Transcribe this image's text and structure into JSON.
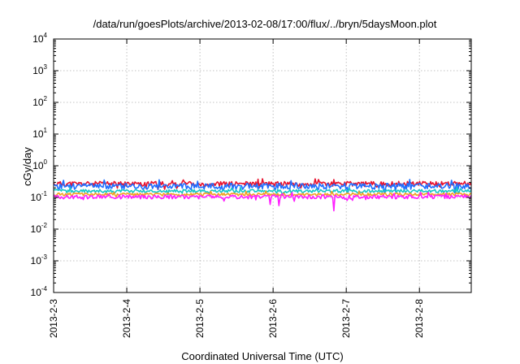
{
  "chart_data": {
    "type": "line",
    "title": "/data/run/goesPlots/archive/2013-02-08/17:00/flux/../bryn/5daysMoon.plot",
    "xlabel": "Coordinated Universal Time (UTC)",
    "ylabel": "cGy/day",
    "yscale": "log",
    "ylim": [
      0.0001,
      10000
    ],
    "y_ticks": [
      {
        "base": "10",
        "exp": "-4"
      },
      {
        "base": "10",
        "exp": "-3"
      },
      {
        "base": "10",
        "exp": "-2"
      },
      {
        "base": "10",
        "exp": "-1"
      },
      {
        "base": "10",
        "exp": "0"
      },
      {
        "base": "10",
        "exp": "1"
      },
      {
        "base": "10",
        "exp": "2"
      },
      {
        "base": "10",
        "exp": "3"
      },
      {
        "base": "10",
        "exp": "4"
      }
    ],
    "xlim": [
      "2013-02-03",
      "2013-02-08T17:00"
    ],
    "x_ticks": [
      "2013-2-3",
      "2013-2-4",
      "2013-2-5",
      "2013-2-6",
      "2013-2-7",
      "2013-2-8"
    ],
    "grid": true,
    "legend": "none",
    "series": [
      {
        "color": "#e8112d",
        "level": 0.27,
        "variation": 0.18,
        "spikes": [],
        "seed": 11
      },
      {
        "color": "#1f6fff",
        "level": 0.23,
        "variation": 0.22,
        "spikes": [],
        "seed": 23
      },
      {
        "color": "#17c7c7",
        "level": 0.16,
        "variation": 0.12,
        "spikes": [],
        "seed": 37
      },
      {
        "color": "#f0a020",
        "level": 0.125,
        "variation": 0.1,
        "spikes": [],
        "seed": 51
      },
      {
        "color": "#ff1fff",
        "level": 0.105,
        "variation": 0.14,
        "spikes": [
          {
            "x": "2013-02-05T23:00",
            "y": 0.06
          },
          {
            "x": "2013-02-06T02:00",
            "y": 0.055
          },
          {
            "x": "2013-02-06T20:00",
            "y": 0.038
          }
        ],
        "seed": 67
      }
    ],
    "n_points": 380
  }
}
